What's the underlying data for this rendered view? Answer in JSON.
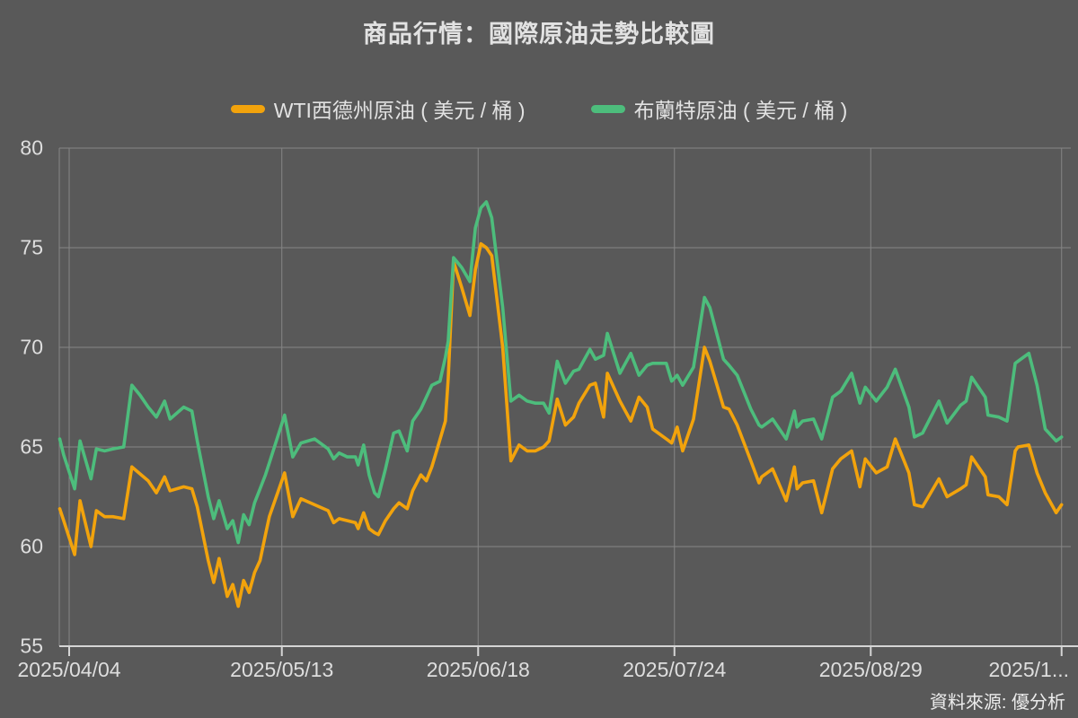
{
  "title": "商品行情：國際原油走勢比較圖",
  "source": "資料來源: 優分析",
  "colors": {
    "background": "#595959",
    "text": "#e2e2e2",
    "gridline": "#868686",
    "axis_line": "#d5d5d5",
    "wti": "#F2A30C",
    "brent": "#4DBD7C"
  },
  "legend": {
    "items": [
      {
        "label": "WTI西德州原油 ( 美元 / 桶 )",
        "color": "#F2A30C"
      },
      {
        "label": "布蘭特原油 ( 美元 / 桶 )",
        "color": "#4DBD7C"
      }
    ]
  },
  "chart_data": {
    "type": "line",
    "title": "商品行情：國際原油走勢比較圖",
    "grid": true,
    "legend_position": "top",
    "y_axis": {
      "min": 55,
      "max": 80,
      "ticks": [
        55,
        60,
        65,
        70,
        75,
        80
      ]
    },
    "x_axis": {
      "unit": "days_after_2025/04/04",
      "ticks": [
        {
          "label": "2025/04/04",
          "d": 0
        },
        {
          "label": "2025/05/13",
          "d": 39
        },
        {
          "label": "2025/06/18",
          "d": 75
        },
        {
          "label": "2025/07/24",
          "d": 111
        },
        {
          "label": "2025/08/29",
          "d": 147
        },
        {
          "label": "2025/1...",
          "d": 182
        }
      ]
    },
    "series": [
      {
        "name": "WTI西德州原油 ( 美元 / 桶 )",
        "color": "#F2A30C",
        "points": [
          [
            -2,
            61.9
          ],
          [
            -1,
            61.3
          ],
          [
            1,
            59.6
          ],
          [
            2,
            62.3
          ],
          [
            4,
            60.0
          ],
          [
            5,
            61.8
          ],
          [
            6.5,
            61.5
          ],
          [
            8,
            61.5
          ],
          [
            10,
            61.4
          ],
          [
            11.5,
            64.0
          ],
          [
            14.5,
            63.3
          ],
          [
            16,
            62.7
          ],
          [
            17.5,
            63.5
          ],
          [
            18.5,
            62.8
          ],
          [
            21,
            63.0
          ],
          [
            22.5,
            62.9
          ],
          [
            23.5,
            62.0
          ],
          [
            25.5,
            59.3
          ],
          [
            26.5,
            58.2
          ],
          [
            27.5,
            59.4
          ],
          [
            29,
            57.5
          ],
          [
            30,
            58.1
          ],
          [
            31,
            57.0
          ],
          [
            32,
            58.3
          ],
          [
            33,
            57.7
          ],
          [
            34,
            58.7
          ],
          [
            35,
            59.3
          ],
          [
            36,
            60.6
          ],
          [
            36.7,
            61.5
          ],
          [
            39.5,
            63.7
          ],
          [
            41,
            61.5
          ],
          [
            42.5,
            62.4
          ],
          [
            45,
            62.1
          ],
          [
            47.5,
            61.8
          ],
          [
            48.5,
            61.2
          ],
          [
            49.5,
            61.4
          ],
          [
            51,
            61.3
          ],
          [
            52.5,
            61.2
          ],
          [
            53,
            60.9
          ],
          [
            54,
            61.7
          ],
          [
            55,
            60.9
          ],
          [
            56,
            60.7
          ],
          [
            56.7,
            60.6
          ],
          [
            58,
            61.3
          ],
          [
            59.5,
            61.9
          ],
          [
            60.5,
            62.2
          ],
          [
            62,
            61.9
          ],
          [
            63,
            62.8
          ],
          [
            64.5,
            63.6
          ],
          [
            65.5,
            63.3
          ],
          [
            66.5,
            64.0
          ],
          [
            67.5,
            64.9
          ],
          [
            69,
            66.3
          ],
          [
            69.5,
            68.4
          ],
          [
            70.5,
            74.3
          ],
          [
            72,
            73.0
          ],
          [
            73.5,
            71.6
          ],
          [
            74.5,
            73.9
          ],
          [
            75.5,
            75.2
          ],
          [
            76.5,
            75.0
          ],
          [
            77.5,
            74.6
          ],
          [
            79.5,
            70.0
          ],
          [
            81,
            64.3
          ],
          [
            82.5,
            65.1
          ],
          [
            84,
            64.8
          ],
          [
            85.5,
            64.8
          ],
          [
            87,
            65.0
          ],
          [
            88,
            65.3
          ],
          [
            89.5,
            67.4
          ],
          [
            91,
            66.1
          ],
          [
            92.5,
            66.5
          ],
          [
            93.5,
            67.2
          ],
          [
            95.5,
            68.1
          ],
          [
            96.5,
            68.2
          ],
          [
            98,
            66.5
          ],
          [
            98.7,
            68.7
          ],
          [
            101,
            67.3
          ],
          [
            103,
            66.3
          ],
          [
            104.5,
            67.5
          ],
          [
            106,
            67.0
          ],
          [
            107,
            65.9
          ],
          [
            109.5,
            65.4
          ],
          [
            110.5,
            65.2
          ],
          [
            111.5,
            66.0
          ],
          [
            112.5,
            64.8
          ],
          [
            114.5,
            66.4
          ],
          [
            116.5,
            70.0
          ],
          [
            117.5,
            69.3
          ],
          [
            120,
            67.0
          ],
          [
            121,
            66.9
          ],
          [
            122.5,
            66.1
          ],
          [
            125,
            64.3
          ],
          [
            126.5,
            63.2
          ],
          [
            127,
            63.5
          ],
          [
            129,
            63.9
          ],
          [
            131.5,
            62.3
          ],
          [
            133,
            64.0
          ],
          [
            133.5,
            62.9
          ],
          [
            134.5,
            63.2
          ],
          [
            136.5,
            63.3
          ],
          [
            138,
            61.7
          ],
          [
            140,
            63.9
          ],
          [
            141.5,
            64.4
          ],
          [
            143.5,
            64.8
          ],
          [
            145,
            63.0
          ],
          [
            146,
            64.4
          ],
          [
            148,
            63.7
          ],
          [
            150,
            64.0
          ],
          [
            151.5,
            65.4
          ],
          [
            154,
            63.7
          ],
          [
            155,
            62.1
          ],
          [
            156.5,
            62.0
          ],
          [
            159.5,
            63.4
          ],
          [
            161,
            62.5
          ],
          [
            163.5,
            62.9
          ],
          [
            164.5,
            63.1
          ],
          [
            165.5,
            64.5
          ],
          [
            168,
            63.5
          ],
          [
            168.5,
            62.6
          ],
          [
            170.5,
            62.5
          ],
          [
            172,
            62.1
          ],
          [
            173.5,
            64.8
          ],
          [
            174,
            65.0
          ],
          [
            176,
            65.1
          ],
          [
            177.5,
            63.7
          ],
          [
            179,
            62.7
          ],
          [
            181,
            61.7
          ],
          [
            182,
            62.1
          ]
        ]
      },
      {
        "name": "布蘭特原油 ( 美元 / 桶 )",
        "color": "#4DBD7C",
        "points": [
          [
            -2,
            65.4
          ],
          [
            -1,
            64.6
          ],
          [
            1,
            62.9
          ],
          [
            2,
            65.3
          ],
          [
            4,
            63.4
          ],
          [
            5,
            64.9
          ],
          [
            6.5,
            64.8
          ],
          [
            8,
            64.9
          ],
          [
            10,
            65.0
          ],
          [
            11.5,
            68.1
          ],
          [
            13,
            67.6
          ],
          [
            14.5,
            67.0
          ],
          [
            16,
            66.5
          ],
          [
            17.5,
            67.3
          ],
          [
            18.5,
            66.4
          ],
          [
            21,
            67.0
          ],
          [
            22.5,
            66.8
          ],
          [
            23.5,
            65.3
          ],
          [
            25.5,
            62.5
          ],
          [
            26.5,
            61.4
          ],
          [
            27.5,
            62.3
          ],
          [
            29,
            60.9
          ],
          [
            30,
            61.3
          ],
          [
            31,
            60.2
          ],
          [
            32,
            61.6
          ],
          [
            33,
            61.1
          ],
          [
            34,
            62.2
          ],
          [
            35,
            62.9
          ],
          [
            36,
            63.6
          ],
          [
            36.7,
            64.2
          ],
          [
            39.5,
            66.6
          ],
          [
            41,
            64.5
          ],
          [
            42.5,
            65.2
          ],
          [
            45,
            65.4
          ],
          [
            47.5,
            64.9
          ],
          [
            48.5,
            64.4
          ],
          [
            49.5,
            64.7
          ],
          [
            51,
            64.5
          ],
          [
            52.5,
            64.5
          ],
          [
            53,
            64.1
          ],
          [
            54,
            65.1
          ],
          [
            55,
            63.6
          ],
          [
            56,
            62.7
          ],
          [
            56.7,
            62.5
          ],
          [
            58,
            63.9
          ],
          [
            59.5,
            65.7
          ],
          [
            60.5,
            65.8
          ],
          [
            62,
            64.8
          ],
          [
            63,
            66.3
          ],
          [
            64.5,
            66.9
          ],
          [
            66.5,
            68.1
          ],
          [
            68,
            68.3
          ],
          [
            69,
            69.5
          ],
          [
            69.5,
            70.3
          ],
          [
            70.5,
            74.5
          ],
          [
            72,
            74.0
          ],
          [
            73.5,
            73.3
          ],
          [
            74.5,
            76.0
          ],
          [
            75.5,
            77.0
          ],
          [
            76.5,
            77.3
          ],
          [
            77.5,
            76.5
          ],
          [
            79.5,
            72.0
          ],
          [
            81,
            67.3
          ],
          [
            82.5,
            67.6
          ],
          [
            84,
            67.3
          ],
          [
            85.5,
            67.2
          ],
          [
            87,
            67.2
          ],
          [
            88,
            66.7
          ],
          [
            89.5,
            69.3
          ],
          [
            91,
            68.2
          ],
          [
            92.5,
            68.8
          ],
          [
            93.5,
            68.9
          ],
          [
            95.5,
            69.9
          ],
          [
            96.5,
            69.4
          ],
          [
            98,
            69.6
          ],
          [
            98.7,
            70.7
          ],
          [
            101,
            68.7
          ],
          [
            103,
            69.7
          ],
          [
            104.5,
            68.6
          ],
          [
            106,
            69.1
          ],
          [
            107,
            69.2
          ],
          [
            109.5,
            69.2
          ],
          [
            110.5,
            68.3
          ],
          [
            111.5,
            68.6
          ],
          [
            112.5,
            68.1
          ],
          [
            114.5,
            69.0
          ],
          [
            116.5,
            72.5
          ],
          [
            117.5,
            72.0
          ],
          [
            120,
            69.4
          ],
          [
            121,
            69.1
          ],
          [
            122.5,
            68.6
          ],
          [
            125,
            66.9
          ],
          [
            126.5,
            66.1
          ],
          [
            127,
            66.0
          ],
          [
            129,
            66.4
          ],
          [
            131.5,
            65.4
          ],
          [
            133,
            66.8
          ],
          [
            133.5,
            66.0
          ],
          [
            134.5,
            66.3
          ],
          [
            136.5,
            66.4
          ],
          [
            138,
            65.4
          ],
          [
            140,
            67.5
          ],
          [
            141.5,
            67.8
          ],
          [
            143.5,
            68.7
          ],
          [
            145,
            67.2
          ],
          [
            146,
            68.0
          ],
          [
            148,
            67.3
          ],
          [
            150,
            68.0
          ],
          [
            151.5,
            68.9
          ],
          [
            154,
            67.0
          ],
          [
            155,
            65.5
          ],
          [
            156.5,
            65.7
          ],
          [
            159.5,
            67.3
          ],
          [
            161,
            66.2
          ],
          [
            163.5,
            67.1
          ],
          [
            164.5,
            67.3
          ],
          [
            165.5,
            68.5
          ],
          [
            168,
            67.5
          ],
          [
            168.5,
            66.6
          ],
          [
            170.5,
            66.5
          ],
          [
            172,
            66.3
          ],
          [
            173.5,
            69.2
          ],
          [
            174,
            69.3
          ],
          [
            176,
            69.7
          ],
          [
            177.5,
            68.1
          ],
          [
            179,
            65.9
          ],
          [
            181,
            65.3
          ],
          [
            182,
            65.5
          ]
        ]
      }
    ]
  }
}
